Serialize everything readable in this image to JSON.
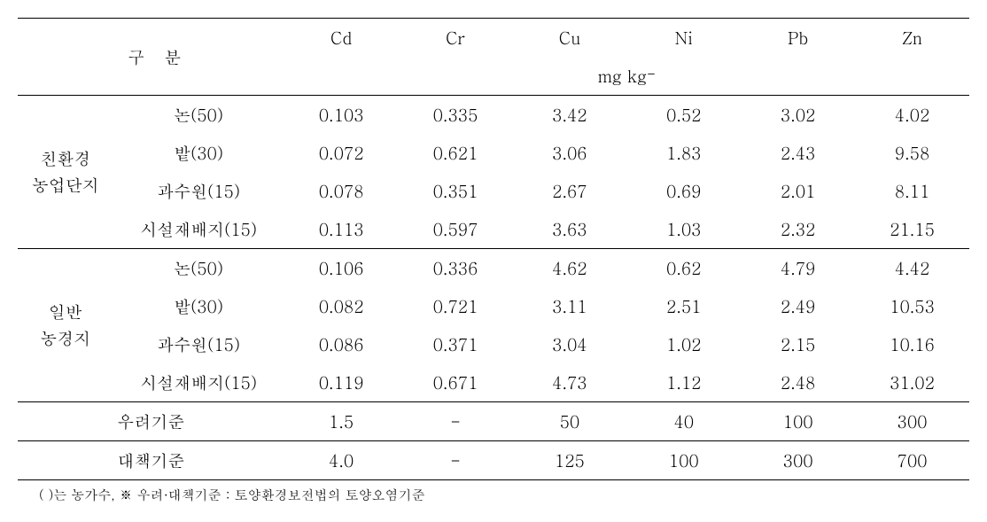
{
  "table": {
    "header": {
      "category_label": "구 분",
      "columns": [
        "Cd",
        "Cr",
        "Cu",
        "Ni",
        "Pb",
        "Zn"
      ],
      "unit": "mg kg⁻"
    },
    "groups": [
      {
        "label_line1": "친환경",
        "label_line2": "농업단지",
        "rows": [
          {
            "subcat": "논(50)",
            "values": [
              "0.103",
              "0.335",
              "3.42",
              "0.52",
              "3.02",
              "4.02"
            ]
          },
          {
            "subcat": "밭(30)",
            "values": [
              "0.072",
              "0.621",
              "3.06",
              "1.83",
              "2.43",
              "9.58"
            ]
          },
          {
            "subcat": "과수원(15)",
            "values": [
              "0.078",
              "0.351",
              "2.67",
              "0.69",
              "2.01",
              "8.11"
            ]
          },
          {
            "subcat": "시설재배지(15)",
            "values": [
              "0.113",
              "0.597",
              "3.63",
              "1.03",
              "2.32",
              "21.15"
            ]
          }
        ]
      },
      {
        "label_line1": "일반",
        "label_line2": "농경지",
        "rows": [
          {
            "subcat": "논(50)",
            "values": [
              "0.106",
              "0.336",
              "4.62",
              "0.62",
              "4.79",
              "4.42"
            ]
          },
          {
            "subcat": "밭(30)",
            "values": [
              "0.082",
              "0.721",
              "3.11",
              "2.51",
              "2.49",
              "10.53"
            ]
          },
          {
            "subcat": "과수원(15)",
            "values": [
              "0.086",
              "0.371",
              "3.04",
              "1.02",
              "2.15",
              "10.16"
            ]
          },
          {
            "subcat": "시설재배지(15)",
            "values": [
              "0.119",
              "0.671",
              "4.73",
              "1.12",
              "2.48",
              "31.02"
            ]
          }
        ]
      }
    ],
    "standards": [
      {
        "label": "우려기준",
        "values": [
          "1.5",
          "-",
          "50",
          "40",
          "100",
          "300"
        ]
      },
      {
        "label": "대책기준",
        "values": [
          "4.0",
          "-",
          "125",
          "100",
          "300",
          "700"
        ]
      }
    ],
    "footnote": "(   )는 농가수, ※ 우려·대책기준 : 토양환경보전법의 토양오염기준",
    "styling": {
      "font_size_body": 19,
      "font_size_footnote": 15,
      "background_color": "#ffffff",
      "border_color": "#000000",
      "border_thick_width": 1.5,
      "border_thin_width": 1,
      "font_family": "Batang, Times New Roman, serif"
    }
  }
}
